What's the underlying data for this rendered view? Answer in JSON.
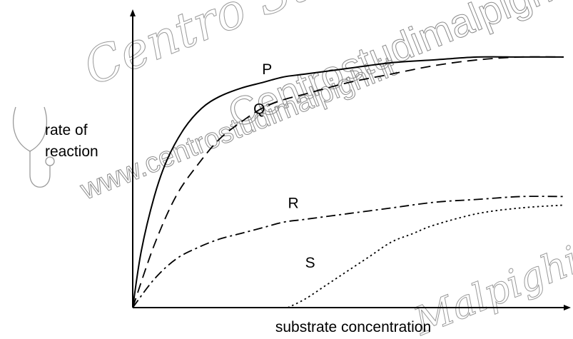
{
  "watermark": {
    "script_top": "Centro Studi",
    "brand": "Centrostudimalpighi",
    "url": "www.centrostudimalpighi.it",
    "script_bottom": "Malpighi"
  },
  "chart_data": {
    "type": "line",
    "title": "",
    "xlabel": "substrate concentration",
    "ylabel_lines": [
      "rate of",
      "reaction"
    ],
    "xlim": [
      0,
      100
    ],
    "ylim": [
      0,
      100
    ],
    "grid": false,
    "legend": "none",
    "curve_labels": "inline",
    "series": [
      {
        "name": "P",
        "line_style": "solid",
        "label_at": [
          30,
          82
        ],
        "x": [
          0,
          2,
          5,
          8,
          12,
          16,
          20,
          25,
          30,
          35,
          40,
          50,
          60,
          70,
          80,
          90,
          100
        ],
        "y": [
          0,
          20,
          39,
          52,
          63,
          70,
          74,
          77,
          79,
          81,
          82,
          84,
          86,
          87,
          88,
          88,
          88
        ]
      },
      {
        "name": "Q",
        "line_style": "dashed",
        "label_at": [
          28,
          68
        ],
        "x": [
          0,
          5,
          10,
          15,
          20,
          25,
          30,
          35,
          40,
          50,
          60,
          70,
          80,
          90,
          100
        ],
        "y": [
          0,
          22,
          39,
          50,
          59,
          65,
          70,
          73,
          75,
          79,
          82,
          85,
          87,
          88,
          88
        ]
      },
      {
        "name": "R",
        "line_style": "dashdot",
        "label_at": [
          36,
          35
        ],
        "x": [
          0,
          5,
          10,
          15,
          20,
          25,
          30,
          35,
          40,
          50,
          60,
          70,
          80,
          90,
          100
        ],
        "y": [
          0,
          10,
          17,
          21,
          24,
          26,
          28,
          30,
          31,
          33,
          35,
          37,
          38,
          39,
          39
        ]
      },
      {
        "name": "S",
        "line_style": "dotted",
        "label_at": [
          40,
          14
        ],
        "x": [
          36,
          40,
          45,
          50,
          55,
          60,
          65,
          70,
          80,
          90,
          100
        ],
        "y": [
          0,
          3,
          8,
          13,
          18,
          23,
          26,
          29,
          33,
          35,
          36
        ]
      }
    ]
  }
}
